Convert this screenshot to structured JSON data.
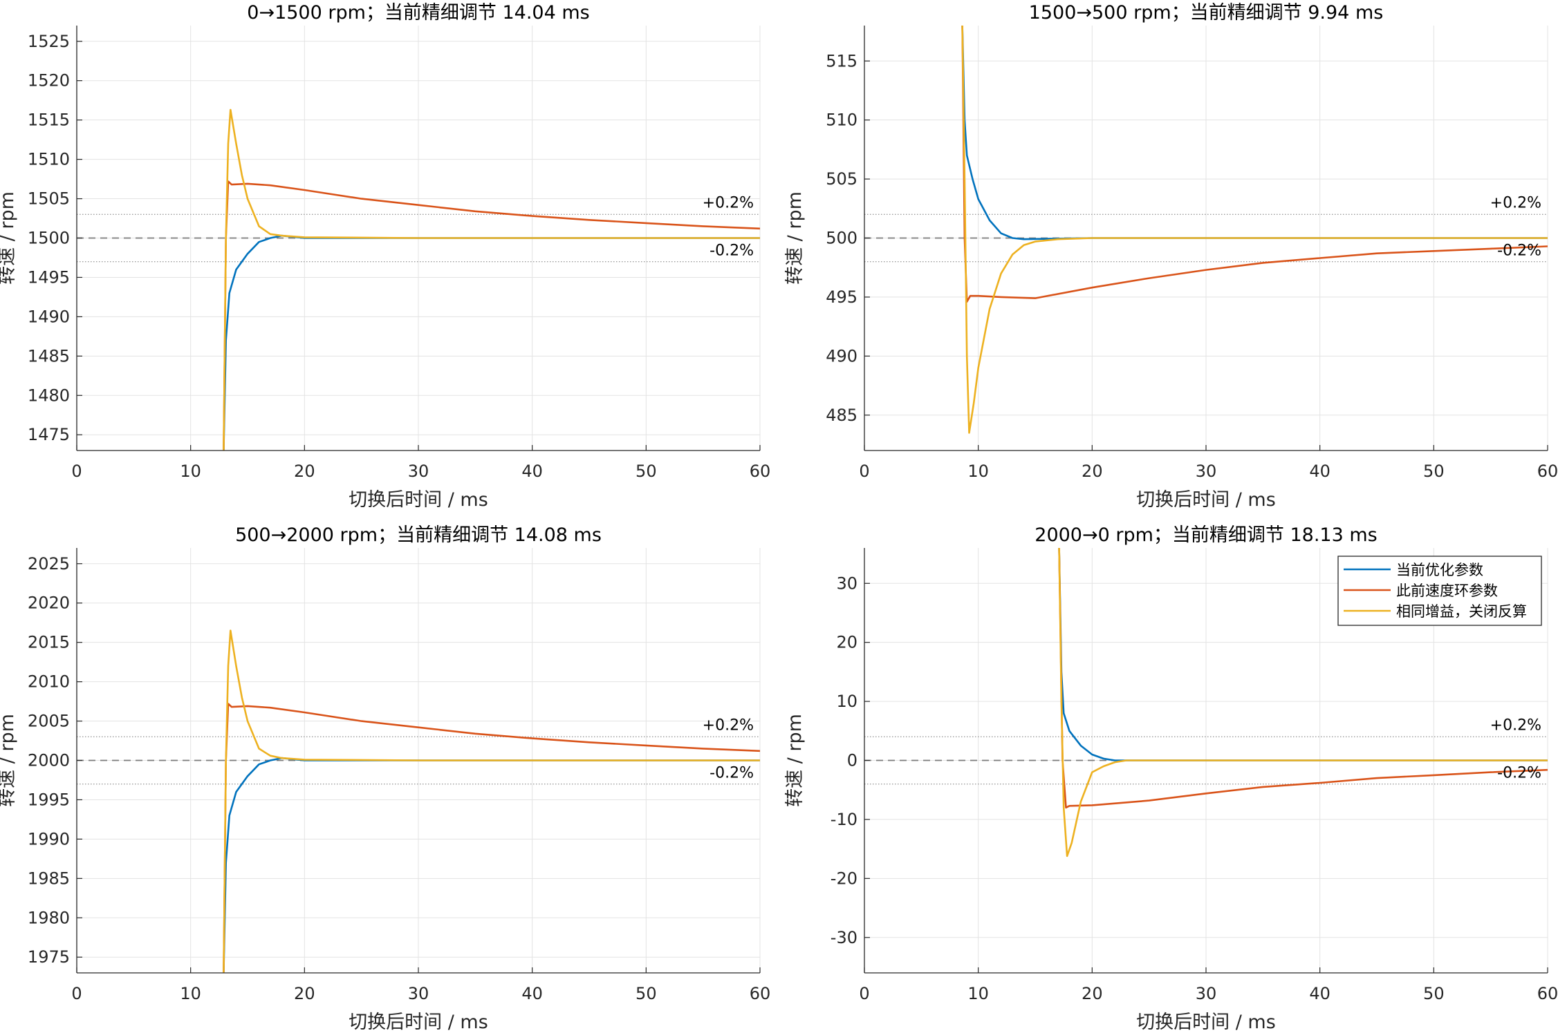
{
  "chart_data": [
    {
      "type": "line",
      "title": "0→1500 rpm；当前精细调节 14.04 ms",
      "xlabel": "切换后时间 / ms",
      "ylabel": "转速 / rpm",
      "xlim": [
        0,
        60
      ],
      "ylim": [
        1473,
        1527
      ],
      "xticks": [
        0,
        10,
        20,
        30,
        40,
        50,
        60
      ],
      "yticks": [
        1475,
        1480,
        1485,
        1490,
        1495,
        1500,
        1505,
        1510,
        1515,
        1520,
        1525
      ],
      "grid": true,
      "reference": {
        "target": 1500,
        "band_upper": 1503,
        "band_lower": 1497,
        "upper_label": "+0.2%",
        "lower_label": "-0.2%"
      },
      "series": [
        {
          "name": "当前优化参数",
          "color": "#0072BD",
          "points": [
            [
              12.9,
              1473
            ],
            [
              13.1,
              1487
            ],
            [
              13.4,
              1493
            ],
            [
              14,
              1496
            ],
            [
              15,
              1498
            ],
            [
              16,
              1499.5
            ],
            [
              17,
              1500
            ],
            [
              18,
              1500.3
            ],
            [
              20,
              1500
            ],
            [
              25,
              1500
            ],
            [
              30,
              1500
            ],
            [
              40,
              1500
            ],
            [
              50,
              1500
            ],
            [
              60,
              1500
            ]
          ]
        },
        {
          "name": "此前速度环参数",
          "color": "#D95319",
          "points": [
            [
              12.9,
              1473
            ],
            [
              13.1,
              1500
            ],
            [
              13.3,
              1507.2
            ],
            [
              13.6,
              1506.8
            ],
            [
              15,
              1506.9
            ],
            [
              17,
              1506.7
            ],
            [
              20,
              1506.1
            ],
            [
              25,
              1505
            ],
            [
              30,
              1504.2
            ],
            [
              35,
              1503.4
            ],
            [
              40,
              1502.8
            ],
            [
              45,
              1502.3
            ],
            [
              50,
              1501.9
            ],
            [
              55,
              1501.5
            ],
            [
              60,
              1501.2
            ]
          ]
        },
        {
          "name": "相同增益，关闭反算",
          "color": "#EDB120",
          "points": [
            [
              12.9,
              1473
            ],
            [
              13.1,
              1500
            ],
            [
              13.3,
              1512
            ],
            [
              13.5,
              1516.3
            ],
            [
              14,
              1512
            ],
            [
              14.5,
              1508
            ],
            [
              15,
              1505
            ],
            [
              16,
              1501.5
            ],
            [
              17,
              1500.5
            ],
            [
              18,
              1500.3
            ],
            [
              20,
              1500.1
            ],
            [
              30,
              1500
            ],
            [
              60,
              1500
            ]
          ]
        }
      ]
    },
    {
      "type": "line",
      "title": "1500→500 rpm；当前精细调节 9.94 ms",
      "xlabel": "切换后时间 / ms",
      "ylabel": "转速 / rpm",
      "xlim": [
        0,
        60
      ],
      "ylim": [
        482,
        518
      ],
      "xticks": [
        0,
        10,
        20,
        30,
        40,
        50,
        60
      ],
      "yticks": [
        485,
        490,
        495,
        500,
        505,
        510,
        515
      ],
      "grid": true,
      "reference": {
        "target": 500,
        "band_upper": 502,
        "band_lower": 498,
        "upper_label": "+0.2%",
        "lower_label": "-0.2%"
      },
      "series": [
        {
          "name": "当前优化参数",
          "color": "#0072BD",
          "points": [
            [
              8.6,
              518
            ],
            [
              8.8,
              510
            ],
            [
              9,
              507
            ],
            [
              9.5,
              505
            ],
            [
              10,
              503.3
            ],
            [
              11,
              501.5
            ],
            [
              12,
              500.4
            ],
            [
              13,
              500
            ],
            [
              14,
              499.9
            ],
            [
              20,
              500
            ],
            [
              30,
              500
            ],
            [
              40,
              500
            ],
            [
              50,
              500
            ],
            [
              60,
              500
            ]
          ]
        },
        {
          "name": "此前速度环参数",
          "color": "#D95319",
          "points": [
            [
              8.6,
              518
            ],
            [
              8.8,
              500
            ],
            [
              9,
              494.6
            ],
            [
              9.3,
              495.1
            ],
            [
              10,
              495.1
            ],
            [
              12,
              495
            ],
            [
              15,
              494.9
            ],
            [
              20,
              495.8
            ],
            [
              25,
              496.6
            ],
            [
              30,
              497.3
            ],
            [
              35,
              497.9
            ],
            [
              40,
              498.3
            ],
            [
              45,
              498.7
            ],
            [
              50,
              498.9
            ],
            [
              55,
              499.1
            ],
            [
              60,
              499.3
            ]
          ]
        },
        {
          "name": "相同增益，关闭反算",
          "color": "#EDB120",
          "points": [
            [
              8.6,
              518
            ],
            [
              8.8,
              505
            ],
            [
              9,
              490
            ],
            [
              9.2,
              483.5
            ],
            [
              9.6,
              486
            ],
            [
              10,
              489
            ],
            [
              11,
              494
            ],
            [
              12,
              497
            ],
            [
              13,
              498.6
            ],
            [
              14,
              499.4
            ],
            [
              15,
              499.7
            ],
            [
              17,
              499.9
            ],
            [
              20,
              500
            ],
            [
              60,
              500
            ]
          ]
        }
      ]
    },
    {
      "type": "line",
      "title": "500→2000 rpm；当前精细调节 14.08 ms",
      "xlabel": "切换后时间 / ms",
      "ylabel": "转速 / rpm",
      "xlim": [
        0,
        60
      ],
      "ylim": [
        1973,
        2027
      ],
      "xticks": [
        0,
        10,
        20,
        30,
        40,
        50,
        60
      ],
      "yticks": [
        1975,
        1980,
        1985,
        1990,
        1995,
        2000,
        2005,
        2010,
        2015,
        2020,
        2025
      ],
      "grid": true,
      "reference": {
        "target": 2000,
        "band_upper": 2003,
        "band_lower": 1997,
        "upper_label": "+0.2%",
        "lower_label": "-0.2%"
      },
      "series": [
        {
          "name": "当前优化参数",
          "color": "#0072BD",
          "points": [
            [
              12.9,
              1973
            ],
            [
              13.1,
              1987
            ],
            [
              13.4,
              1993
            ],
            [
              14,
              1996
            ],
            [
              15,
              1998
            ],
            [
              16,
              1999.5
            ],
            [
              17,
              2000
            ],
            [
              18,
              2000.3
            ],
            [
              20,
              2000
            ],
            [
              30,
              2000
            ],
            [
              40,
              2000
            ],
            [
              50,
              2000
            ],
            [
              60,
              2000
            ]
          ]
        },
        {
          "name": "此前速度环参数",
          "color": "#D95319",
          "points": [
            [
              12.9,
              1973
            ],
            [
              13.1,
              2000
            ],
            [
              13.3,
              2007.2
            ],
            [
              13.6,
              2006.8
            ],
            [
              15,
              2006.9
            ],
            [
              17,
              2006.7
            ],
            [
              20,
              2006.1
            ],
            [
              25,
              2005
            ],
            [
              30,
              2004.2
            ],
            [
              35,
              2003.4
            ],
            [
              40,
              2002.8
            ],
            [
              45,
              2002.3
            ],
            [
              50,
              2001.9
            ],
            [
              55,
              2001.5
            ],
            [
              60,
              2001.2
            ]
          ]
        },
        {
          "name": "相同增益，关闭反算",
          "color": "#EDB120",
          "points": [
            [
              12.9,
              1973
            ],
            [
              13.1,
              2000
            ],
            [
              13.3,
              2012
            ],
            [
              13.5,
              2016.5
            ],
            [
              14,
              2012
            ],
            [
              14.5,
              2008
            ],
            [
              15,
              2005
            ],
            [
              16,
              2001.5
            ],
            [
              17,
              2000.6
            ],
            [
              18,
              2000.3
            ],
            [
              20,
              2000.1
            ],
            [
              30,
              2000
            ],
            [
              60,
              2000
            ]
          ]
        }
      ]
    },
    {
      "type": "line",
      "title": "2000→0 rpm；当前精细调节 18.13 ms",
      "xlabel": "切换后时间 / ms",
      "ylabel": "转速 / rpm",
      "xlim": [
        0,
        60
      ],
      "ylim": [
        -36,
        36
      ],
      "xticks": [
        0,
        10,
        20,
        30,
        40,
        50,
        60
      ],
      "yticks": [
        -30,
        -20,
        -10,
        0,
        10,
        20,
        30
      ],
      "grid": true,
      "legend": "top-right",
      "reference": {
        "target": 0,
        "band_upper": 4,
        "band_lower": -4,
        "upper_label": "+0.2%",
        "lower_label": "-0.2%"
      },
      "series": [
        {
          "name": "当前优化参数",
          "color": "#0072BD",
          "points": [
            [
              17.1,
              36
            ],
            [
              17.3,
              15
            ],
            [
              17.5,
              8
            ],
            [
              18,
              5
            ],
            [
              19,
              2.5
            ],
            [
              20,
              1
            ],
            [
              21,
              0.3
            ],
            [
              22,
              0
            ],
            [
              30,
              0
            ],
            [
              40,
              0
            ],
            [
              50,
              0
            ],
            [
              60,
              0
            ]
          ]
        },
        {
          "name": "此前速度环参数",
          "color": "#D95319",
          "points": [
            [
              17.1,
              36
            ],
            [
              17.4,
              0
            ],
            [
              17.7,
              -8
            ],
            [
              18,
              -7.7
            ],
            [
              20,
              -7.6
            ],
            [
              25,
              -6.8
            ],
            [
              30,
              -5.6
            ],
            [
              35,
              -4.5
            ],
            [
              40,
              -3.8
            ],
            [
              45,
              -3
            ],
            [
              50,
              -2.5
            ],
            [
              55,
              -2
            ],
            [
              60,
              -1.6
            ]
          ]
        },
        {
          "name": "相同增益，关闭反算",
          "color": "#EDB120",
          "points": [
            [
              17.1,
              36
            ],
            [
              17.3,
              10
            ],
            [
              17.5,
              -8
            ],
            [
              17.8,
              -16.2
            ],
            [
              18.2,
              -14
            ],
            [
              19,
              -7
            ],
            [
              20,
              -2
            ],
            [
              21,
              -1
            ],
            [
              22,
              -0.3
            ],
            [
              23,
              0
            ],
            [
              60,
              0
            ]
          ]
        }
      ]
    }
  ]
}
